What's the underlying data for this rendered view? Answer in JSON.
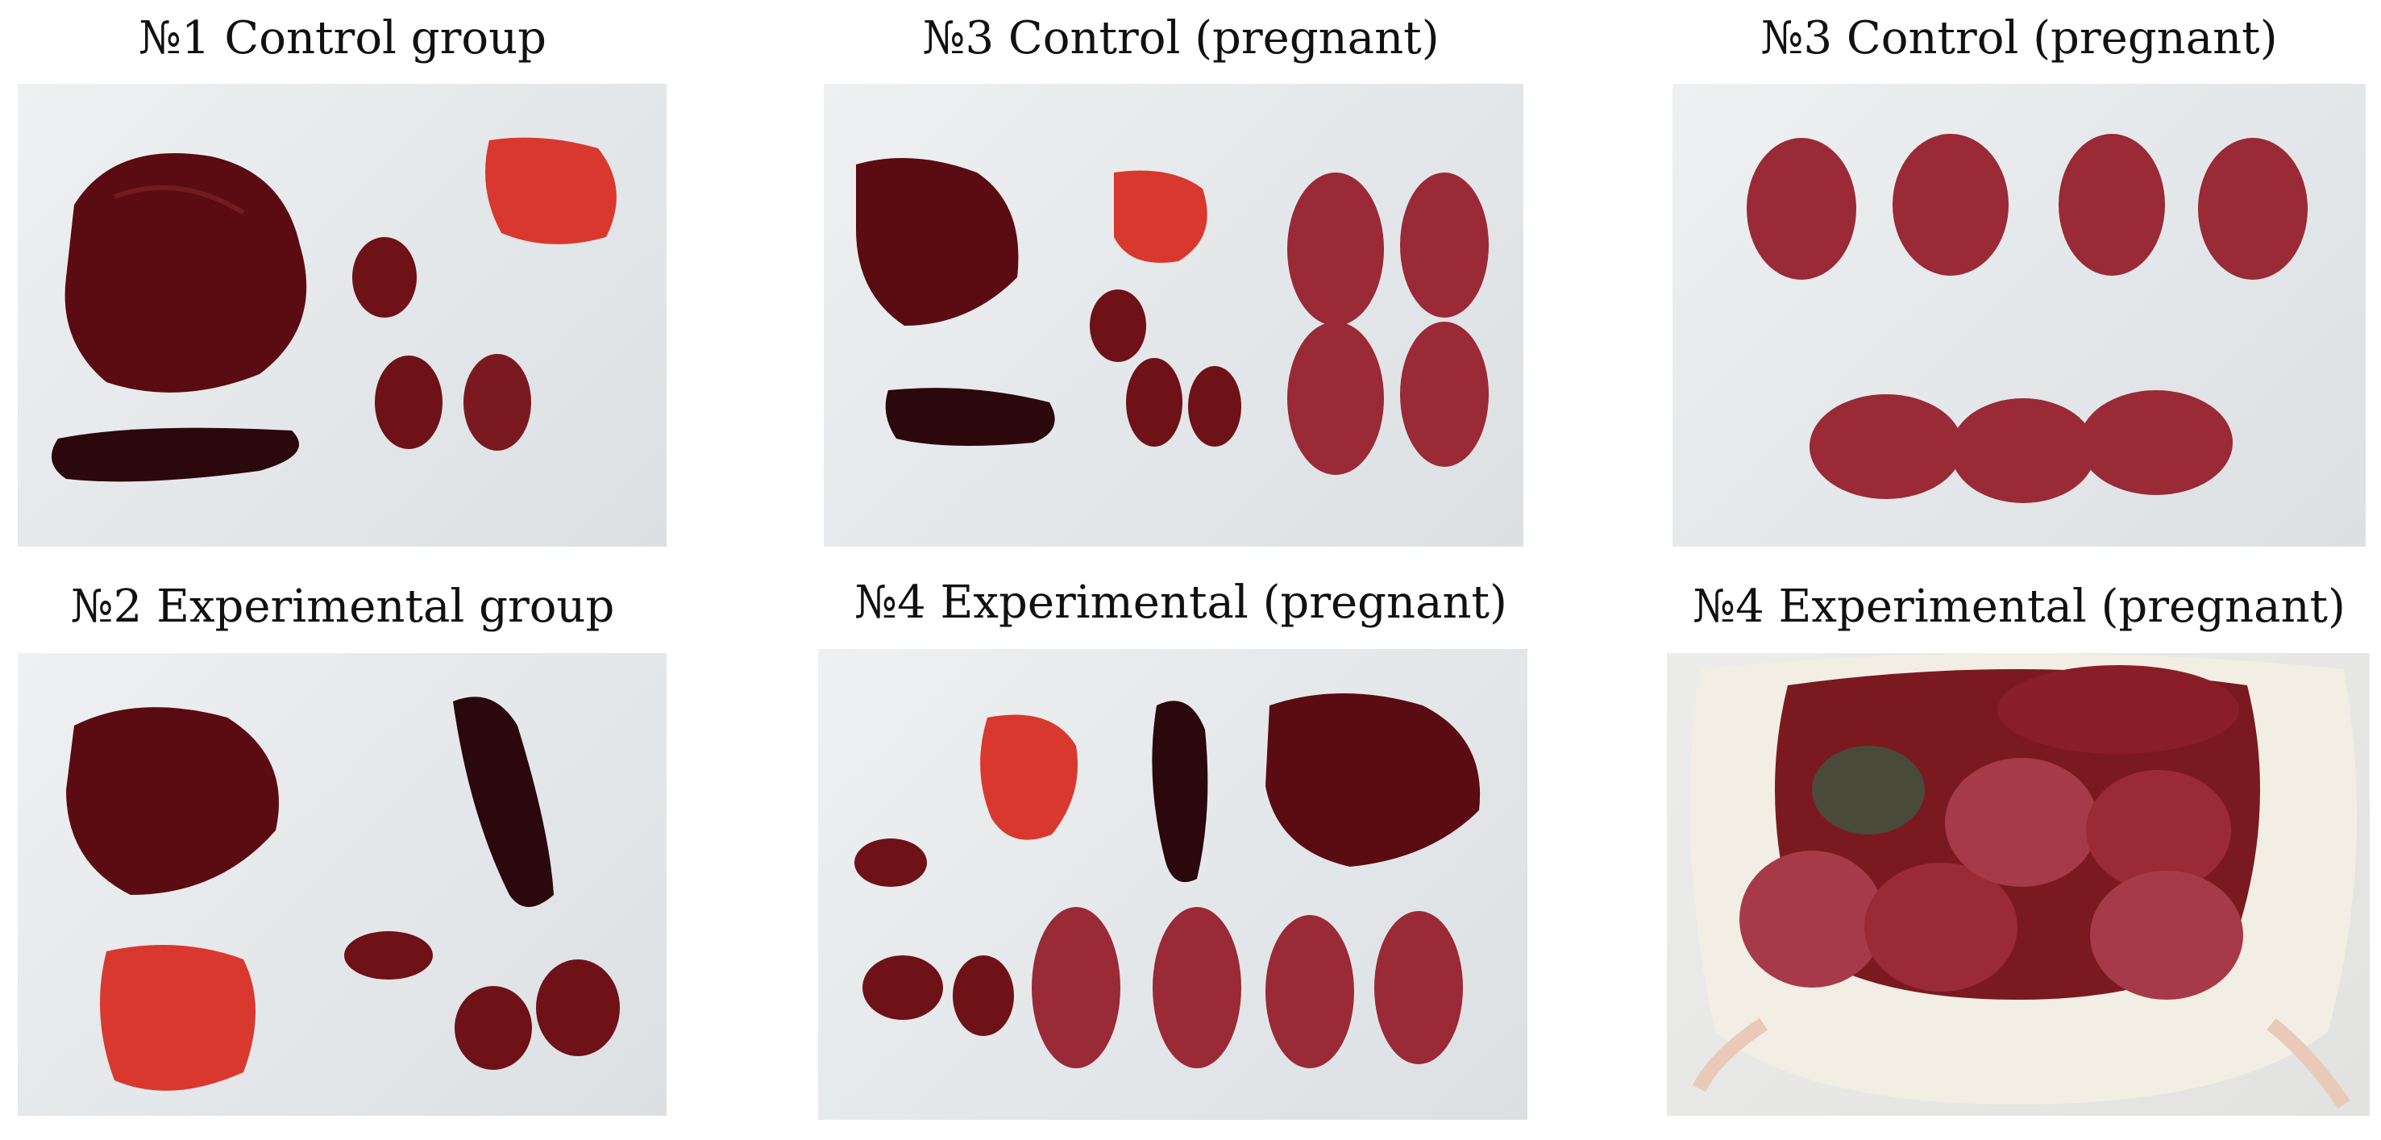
{
  "figure": {
    "panels": [
      {
        "caption": "№1 Control group"
      },
      {
        "caption": "№3 Control (pregnant)"
      },
      {
        "caption": "№3 Control (pregnant)"
      },
      {
        "caption": "№2 Experimental group"
      },
      {
        "caption": "№4 Experimental (pregnant)"
      },
      {
        "caption": "№4 Experimental (pregnant)"
      }
    ]
  },
  "colors": {
    "background": "#ffffff",
    "tray": "#e6e9eb",
    "liver": "#5a0c12",
    "spleen": "#2a080c",
    "lung": "#d9382e",
    "kidney": "#6e1218",
    "fetus": "#9a2a36",
    "fur": "#f2eee4"
  }
}
